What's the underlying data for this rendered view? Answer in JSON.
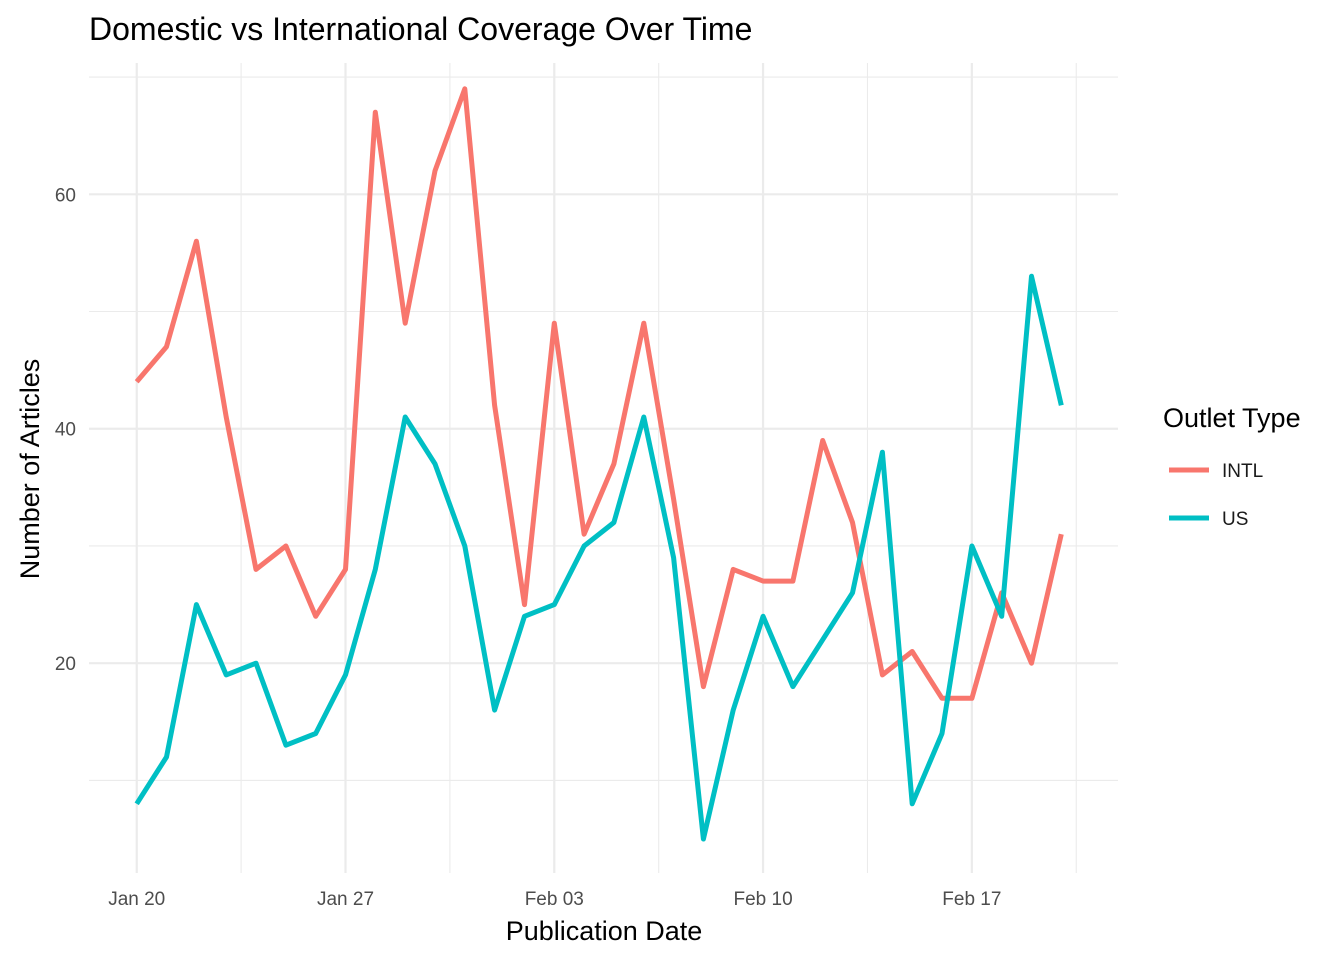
{
  "chart_data": {
    "type": "line",
    "title": "Domestic vs International Coverage Over Time",
    "xlabel": "Publication Date",
    "ylabel": "Number of Articles",
    "x_tick_labels": [
      "Jan 20",
      "Jan 27",
      "Feb 03",
      "Feb 10",
      "Feb 17"
    ],
    "x_tick_days": [
      0,
      7,
      14,
      21,
      28
    ],
    "x_minor_days": [
      3.5,
      10.5,
      17.5,
      24.5,
      31.5
    ],
    "x_range_days": [
      -1.6,
      32.9
    ],
    "y_tick_values": [
      20,
      40,
      60
    ],
    "y_minor_values": [
      10,
      30,
      50,
      70
    ],
    "ylim": [
      2.1,
      71.2
    ],
    "legend": {
      "title": "Outlet Type",
      "placement": "right"
    },
    "x_days": [
      0,
      1,
      2,
      3,
      4,
      5,
      6,
      7,
      8,
      9,
      10,
      11,
      12,
      13,
      14,
      15,
      16,
      17,
      18,
      19,
      20,
      21,
      22,
      23,
      24,
      25,
      26,
      27,
      28,
      29,
      30,
      31
    ],
    "series": [
      {
        "name": "INTL",
        "color": "#F8766D",
        "values": [
          44,
          47,
          56,
          41,
          28,
          30,
          24,
          28,
          67,
          49,
          62,
          69,
          42,
          25,
          49,
          31,
          37,
          49,
          34,
          18,
          28,
          27,
          27,
          39,
          32,
          19,
          21,
          17,
          17,
          26,
          20,
          31
        ]
      },
      {
        "name": "US",
        "color": "#00BFC4",
        "values": [
          8,
          12,
          25,
          19,
          20,
          13,
          14,
          19,
          28,
          41,
          37,
          30,
          16,
          24,
          25,
          30,
          32,
          41,
          29,
          5,
          16,
          24,
          18,
          22,
          26,
          38,
          8,
          14,
          30,
          24,
          53,
          42
        ]
      }
    ]
  }
}
